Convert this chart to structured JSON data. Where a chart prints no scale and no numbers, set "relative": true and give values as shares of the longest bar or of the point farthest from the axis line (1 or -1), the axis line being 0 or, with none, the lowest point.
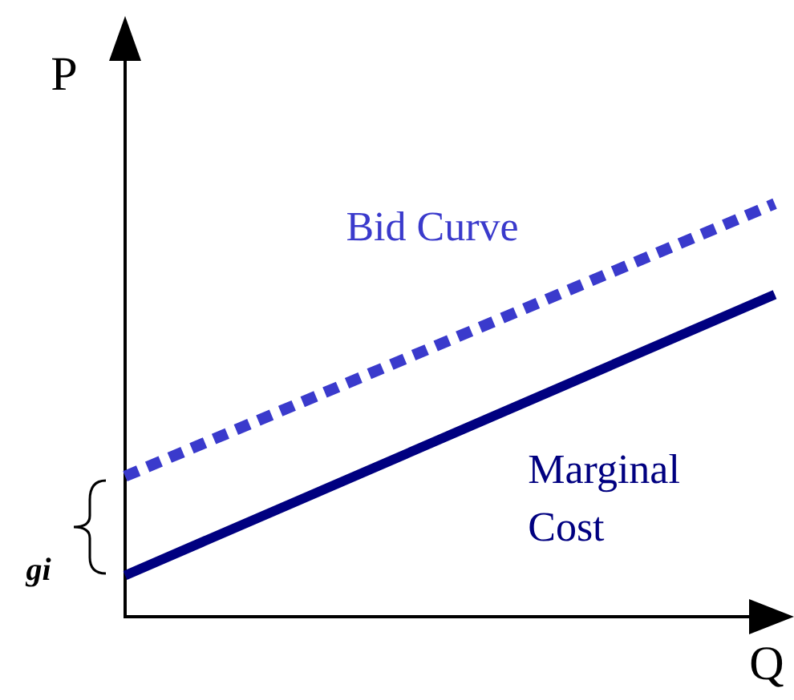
{
  "chart_data": {
    "type": "line",
    "relative": true,
    "xlabel": "Q",
    "ylabel": "P",
    "categories": [
      null,
      null
    ],
    "series": [
      {
        "name": "Bid Curve",
        "color": "#3a3acc",
        "values": [
          0.34,
          1.0
        ],
        "line_style": "dashed"
      },
      {
        "name": "Marginal Cost",
        "color": "#000080",
        "values": [
          0.1,
          0.78
        ],
        "line_style": "solid"
      }
    ],
    "annotations": [
      "gi"
    ],
    "legend": false,
    "grid": false,
    "marker": "none"
  }
}
